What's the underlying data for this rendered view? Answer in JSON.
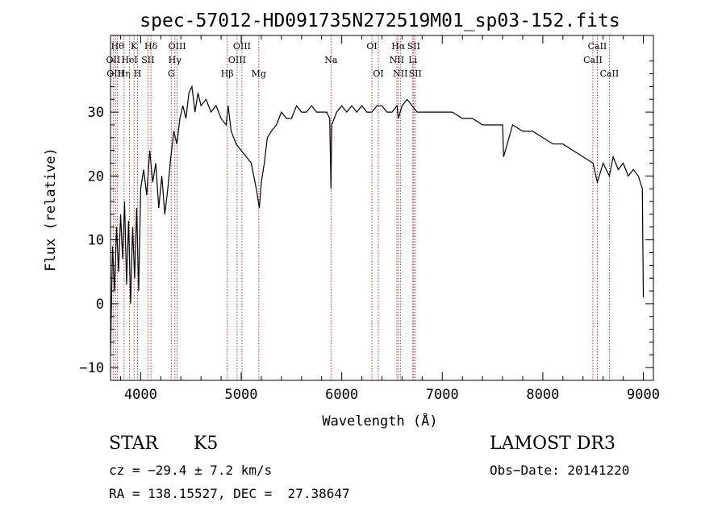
{
  "chart_data": {
    "type": "line",
    "title": "spec-57012-HD091735N272519M01_sp03-152.fits",
    "xlabel": "Wavelength (Å)",
    "ylabel": "Flux (relative)",
    "xlim": [
      3700,
      9100
    ],
    "ylim": [
      -12,
      42
    ],
    "xticks": [
      4000,
      5000,
      6000,
      7000,
      8000,
      9000
    ],
    "yticks": [
      -10,
      0,
      10,
      20,
      30
    ],
    "line_color": "#000000",
    "marker_color": "#b22222",
    "grid": false,
    "series": [
      {
        "x": [
          3700,
          3720,
          3740,
          3760,
          3780,
          3800,
          3820,
          3840,
          3860,
          3880,
          3900,
          3920,
          3940,
          3960,
          3980,
          4000,
          4030,
          4060,
          4090,
          4120,
          4150,
          4180,
          4210,
          4240,
          4270,
          4300,
          4330,
          4360,
          4390,
          4420,
          4450,
          4480,
          4510,
          4540,
          4570,
          4600,
          4650,
          4700,
          4750,
          4800,
          4850,
          4870,
          4900,
          4950,
          5000,
          5050,
          5100,
          5150,
          5180,
          5200,
          5230,
          5260,
          5300,
          5350,
          5400,
          5450,
          5500,
          5550,
          5600,
          5650,
          5700,
          5750,
          5800,
          5850,
          5880,
          5893,
          5900,
          5950,
          6000,
          6050,
          6100,
          6150,
          6200,
          6250,
          6300,
          6350,
          6400,
          6450,
          6500,
          6550,
          6563,
          6600,
          6650,
          6700,
          6750,
          6800,
          6900,
          7000,
          7100,
          7200,
          7300,
          7400,
          7500,
          7600,
          7610,
          7700,
          7800,
          7900,
          8000,
          8100,
          8200,
          8300,
          8400,
          8500,
          8542,
          8600,
          8662,
          8700,
          8750,
          8800,
          8850,
          8900,
          8950,
          8990,
          9000
        ],
        "y": [
          -8,
          9,
          2,
          12,
          5,
          14,
          7,
          16,
          3,
          13,
          0,
          12,
          4,
          15,
          2,
          18,
          21,
          17,
          24,
          19,
          22,
          15,
          20,
          14,
          18,
          23,
          27,
          25,
          29,
          31,
          29,
          33,
          34,
          30,
          33,
          31,
          32,
          30,
          31,
          29,
          28,
          31,
          27,
          25,
          24,
          23,
          22,
          18,
          15,
          19,
          22,
          26,
          27,
          28,
          30,
          29,
          29,
          31,
          30,
          30,
          31,
          30,
          30,
          30,
          29,
          18,
          28,
          30,
          31,
          30,
          31,
          30,
          31,
          30,
          30,
          31,
          31,
          30,
          30,
          31,
          29,
          31,
          32,
          31,
          30,
          30,
          30,
          30,
          30,
          29,
          29,
          28,
          28,
          28,
          23,
          28,
          27,
          27,
          26,
          25,
          25,
          24,
          23,
          22,
          19,
          22,
          20,
          23,
          21,
          22,
          20,
          21,
          20,
          18,
          1
        ]
      }
    ],
    "line_markers": [
      {
        "x": 3727,
        "label": "OII",
        "row": 1
      },
      {
        "x": 3750,
        "label": "OIII",
        "row": 2
      },
      {
        "x": 3770,
        "label": "Hθ",
        "row": 0
      },
      {
        "x": 3835,
        "label": "Hη",
        "row": 2
      },
      {
        "x": 3889,
        "label": "HeI",
        "row": 1
      },
      {
        "x": 3934,
        "label": "K",
        "row": 0
      },
      {
        "x": 3969,
        "label": "H",
        "row": 2
      },
      {
        "x": 4072,
        "label": "SII",
        "row": 1
      },
      {
        "x": 4102,
        "label": "Hδ",
        "row": 0
      },
      {
        "x": 4304,
        "label": "G",
        "row": 2
      },
      {
        "x": 4340,
        "label": "Hγ",
        "row": 1
      },
      {
        "x": 4363,
        "label": "OIII",
        "row": 0
      },
      {
        "x": 4861,
        "label": "Hβ",
        "row": 2
      },
      {
        "x": 4959,
        "label": "OIII",
        "row": 1
      },
      {
        "x": 5007,
        "label": "OIII",
        "row": 0
      },
      {
        "x": 5175,
        "label": "Mg",
        "row": 2
      },
      {
        "x": 5893,
        "label": "Na",
        "row": 1
      },
      {
        "x": 6300,
        "label": "OI",
        "row": 0
      },
      {
        "x": 6364,
        "label": "OI",
        "row": 2
      },
      {
        "x": 6548,
        "label": "NII",
        "row": 1
      },
      {
        "x": 6563,
        "label": "Hα",
        "row": 0
      },
      {
        "x": 6583,
        "label": "NII",
        "row": 2
      },
      {
        "x": 6707,
        "label": "Li",
        "row": 1
      },
      {
        "x": 6716,
        "label": "SII",
        "row": 0
      },
      {
        "x": 6731,
        "label": "SII",
        "row": 2
      },
      {
        "x": 8498,
        "label": "CaII",
        "row": 1
      },
      {
        "x": 8542,
        "label": "CaII",
        "row": 0
      },
      {
        "x": 8662,
        "label": "CaII",
        "row": 2
      }
    ]
  },
  "info": {
    "object_class": "STAR",
    "subclass": "K5",
    "survey": "LAMOST DR3",
    "cz": "cz = −29.4 ± 7.2 km/s",
    "obs_date": "Obs−Date: 20141220",
    "coords": "RA = 138.15527, DEC =  27.38647"
  }
}
